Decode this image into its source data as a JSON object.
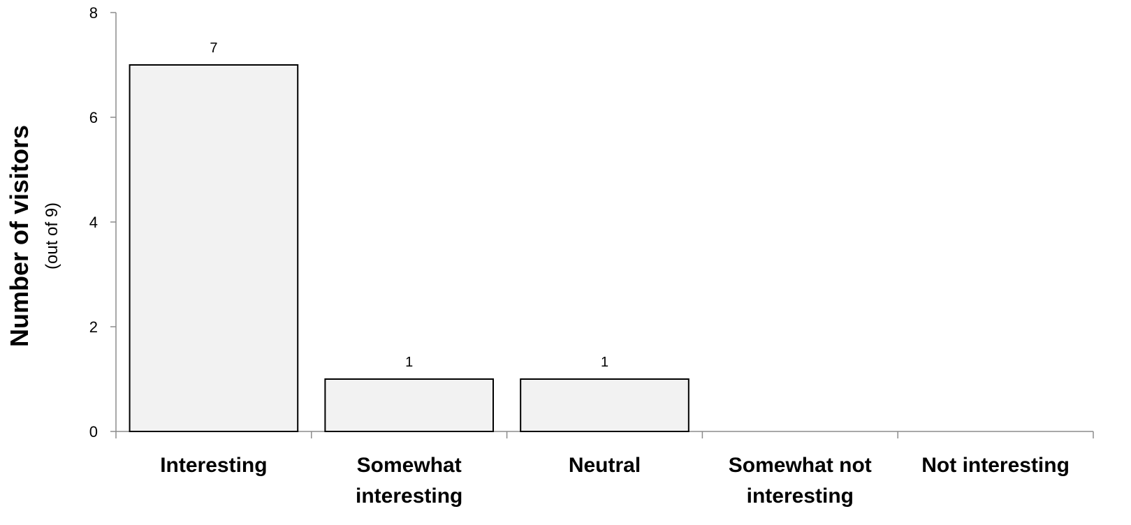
{
  "chart_data": {
    "type": "bar",
    "categories": [
      "Interesting",
      "Somewhat interesting",
      "Neutral",
      "Somewhat not interesting",
      "Not interesting"
    ],
    "category_lines": [
      [
        "Interesting"
      ],
      [
        "Somewhat",
        "interesting"
      ],
      [
        "Neutral"
      ],
      [
        "Somewhat not",
        "interesting"
      ],
      [
        "Not interesting"
      ]
    ],
    "values": [
      7,
      1,
      1,
      0,
      0
    ],
    "data_labels": [
      "7",
      "1",
      "1",
      "",
      ""
    ],
    "title": "",
    "xlabel": "",
    "ylabel": "Number of visitors",
    "ylabel_sub": "(out of 9)",
    "ylim": [
      0,
      8
    ],
    "yticks": [
      0,
      2,
      4,
      6,
      8
    ],
    "grid": false,
    "legend": "none",
    "colors": {
      "bar_fill": "#f2f2f2",
      "bar_stroke": "#000000",
      "axis": "#8c8c8c"
    }
  }
}
